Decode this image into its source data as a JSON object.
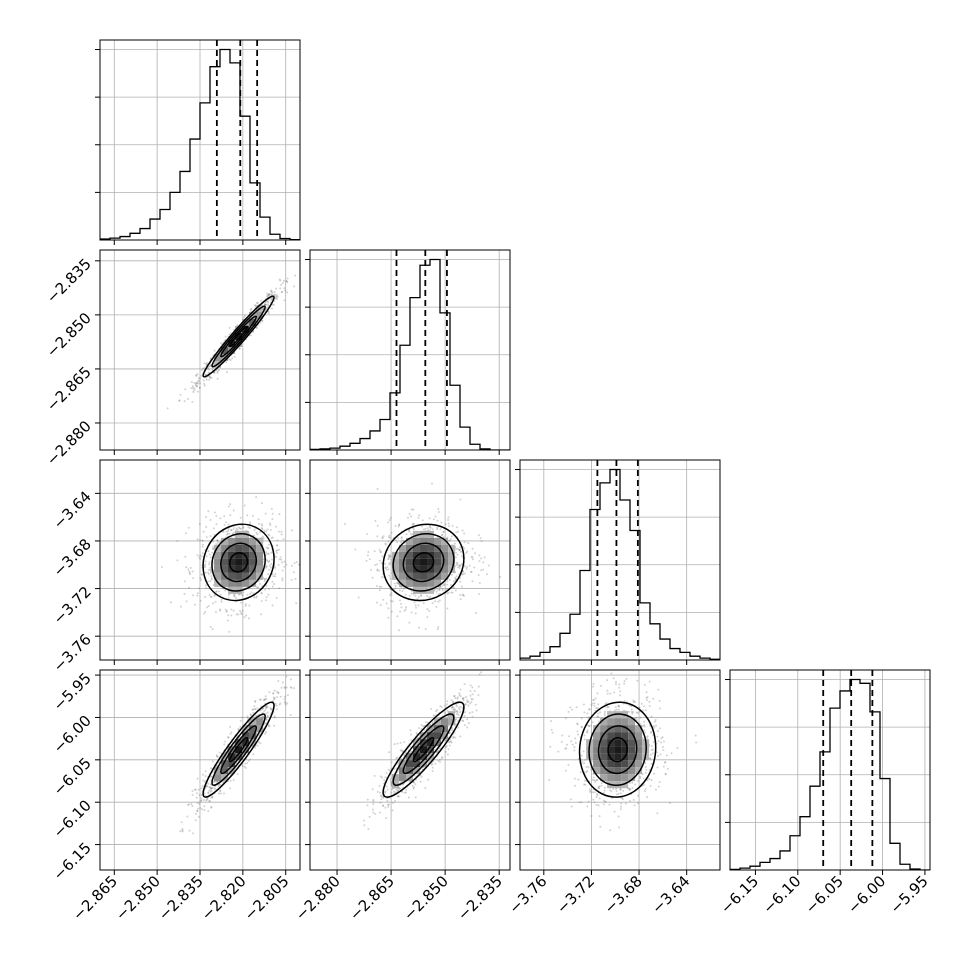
{
  "chart_data": {
    "type": "corner",
    "grid": true,
    "colors": {
      "line": "#000000",
      "grid": "#b0b0b0",
      "points": "#7f7f7f",
      "frame": "#000000"
    },
    "parameters": [
      {
        "range": [
          -2.87,
          -2.8
        ],
        "ticks": [
          "−2.865",
          "−2.850",
          "−2.835",
          "−2.820",
          "−2.805"
        ],
        "tick_values": [
          -2.865,
          -2.85,
          -2.835,
          -2.82,
          -2.805
        ],
        "quantiles": [
          -2.8291,
          -2.8209,
          -2.815
        ],
        "mean": -2.8215,
        "sigma": 0.0062
      },
      {
        "range": [
          -2.8875,
          -2.832
        ],
        "ticks": [
          "−2.880",
          "−2.865",
          "−2.850",
          "−2.835"
        ],
        "tick_values": [
          -2.88,
          -2.865,
          -2.85,
          -2.835
        ],
        "quantiles": [
          -2.8635,
          -2.8555,
          -2.8495
        ],
        "mean": -2.856,
        "sigma": 0.0056
      },
      {
        "range": [
          -3.78,
          -3.612
        ],
        "ticks": [
          "−3.76",
          "−3.72",
          "−3.68",
          "−3.64"
        ],
        "tick_values": [
          -3.76,
          -3.72,
          -3.68,
          -3.64
        ],
        "quantiles": [
          -3.715,
          -3.699,
          -3.681
        ],
        "mean": -3.698,
        "sigma": 0.016
      },
      {
        "range": [
          -6.18,
          -5.944
        ],
        "ticks": [
          "−6.15",
          "−6.10",
          "−6.05",
          "−6.00",
          "−5.95"
        ],
        "tick_values": [
          -6.15,
          -6.1,
          -6.05,
          -6.0,
          -5.95
        ],
        "quantiles": [
          -6.07,
          -6.037,
          -6.012
        ],
        "mean": -6.038,
        "sigma": 0.028
      }
    ],
    "histograms": [
      [
        0.005,
        0.01,
        0.018,
        0.035,
        0.06,
        0.11,
        0.16,
        0.25,
        0.36,
        0.53,
        0.72,
        0.91,
        1.0,
        0.93,
        0.65,
        0.3,
        0.12,
        0.03,
        0.008,
        0.002
      ],
      [
        0.003,
        0.006,
        0.01,
        0.02,
        0.035,
        0.06,
        0.1,
        0.16,
        0.3,
        0.55,
        0.8,
        0.97,
        1.0,
        0.72,
        0.34,
        0.12,
        0.03,
        0.006,
        0.0,
        0.0
      ],
      [
        0.01,
        0.02,
        0.04,
        0.07,
        0.14,
        0.24,
        0.47,
        0.79,
        0.93,
        1.0,
        0.84,
        0.68,
        0.3,
        0.19,
        0.11,
        0.06,
        0.04,
        0.02,
        0.01,
        0.004
      ],
      [
        0.003,
        0.01,
        0.02,
        0.04,
        0.06,
        0.1,
        0.18,
        0.28,
        0.44,
        0.62,
        0.85,
        0.94,
        1.0,
        0.98,
        0.83,
        0.48,
        0.14,
        0.03,
        0.005,
        0.0
      ]
    ],
    "correlations": {
      "1-0": 0.97,
      "2-0": 0.1,
      "2-1": 0.1,
      "3-0": 0.93,
      "3-1": 0.9,
      "3-2": 0.05
    }
  }
}
